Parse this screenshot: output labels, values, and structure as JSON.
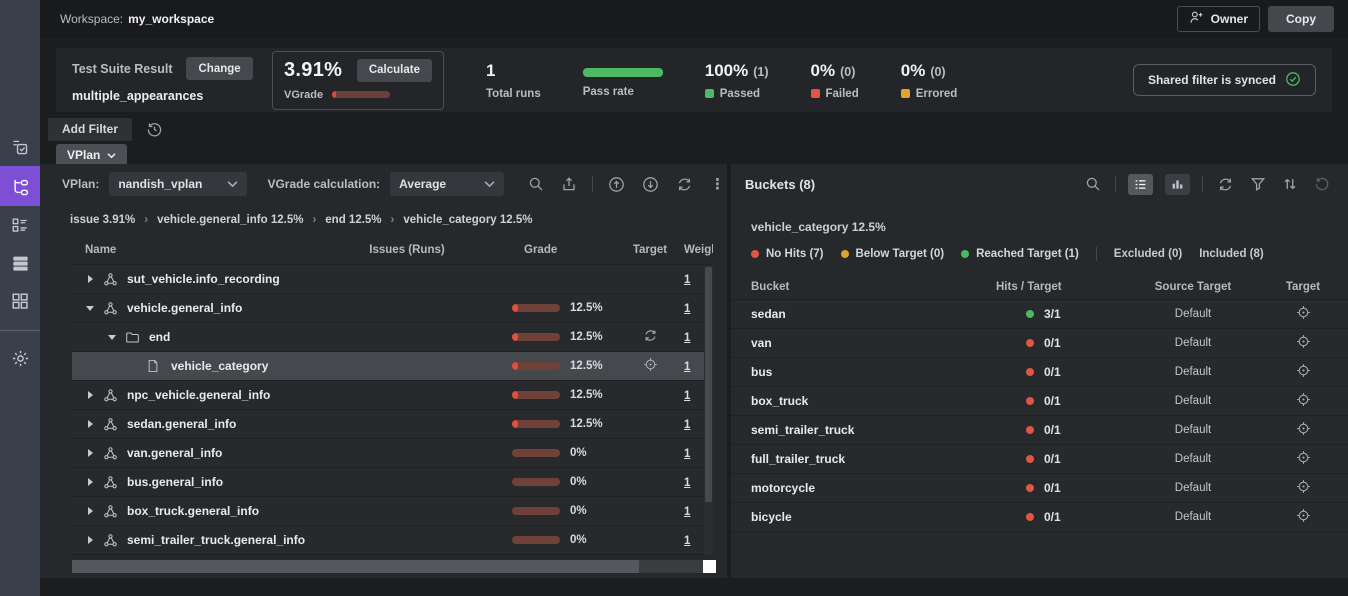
{
  "colors": {
    "accent_purple": "#7c4fd4",
    "green": "#4cb963",
    "red": "#e05543",
    "yellow": "#e0a42e",
    "grade_fill": "#e0503a",
    "grade_track": "#6f4138"
  },
  "topbar": {
    "workspace_label": "Workspace:",
    "workspace_name": "my_workspace",
    "owner_button": "Owner",
    "copy_button": "Copy"
  },
  "sidebar": {
    "items": [
      {
        "name": "test-suites-icon",
        "active": false
      },
      {
        "name": "vplan-tree-icon",
        "active": true
      },
      {
        "name": "checklist-icon",
        "active": false
      },
      {
        "name": "runs-stack-icon",
        "active": false
      },
      {
        "name": "dashboard-grid-icon",
        "active": false
      },
      {
        "name": "settings-gear-icon",
        "active": false
      }
    ]
  },
  "stats": {
    "test_suite_label": "Test Suite Result",
    "change_button": "Change",
    "suite_name": "multiple_appearances",
    "vgrade_value": "3.91%",
    "vgrade_percent": 3.91,
    "calculate_button": "Calculate",
    "vgrade_label": "VGrade",
    "total_runs_value": "1",
    "total_runs_label": "Total runs",
    "pass_rate_label": "Pass rate",
    "pass_rate_percent": 100,
    "passed_value": "100%",
    "passed_count": "(1)",
    "passed_label": "Passed",
    "failed_value": "0%",
    "failed_count": "(0)",
    "failed_label": "Failed",
    "errored_value": "0%",
    "errored_count": "(0)",
    "errored_label": "Errored",
    "shared_filter_label": "Shared filter is synced"
  },
  "filter_bar": {
    "add_filter_button": "Add Filter"
  },
  "tab": {
    "label": "VPlan"
  },
  "vplan_panel": {
    "vplan_label": "VPlan:",
    "vplan_value": "nandish_vplan",
    "calc_label": "VGrade calculation:",
    "calc_value": "Average",
    "breadcrumb": [
      "issue 3.91%",
      "vehicle.general_info 12.5%",
      "end 12.5%",
      "vehicle_category 12.5%"
    ],
    "columns": {
      "name": "Name",
      "issues": "Issues (Runs)",
      "grade": "Grade",
      "target": "Target",
      "weight": "Weight"
    },
    "rows": [
      {
        "name": "sut_vehicle.info_recording",
        "indent": 0,
        "icon": "hierarchy",
        "expander": "collapsed",
        "grade": null,
        "grade_pct": null,
        "target_icon": null,
        "weight": "1",
        "selected": false
      },
      {
        "name": "vehicle.general_info",
        "indent": 0,
        "icon": "hierarchy",
        "expander": "expanded",
        "grade": "12.5%",
        "grade_pct": 12.5,
        "target_icon": null,
        "weight": "1",
        "selected": false
      },
      {
        "name": "end",
        "indent": 1,
        "icon": "folder",
        "expander": "expanded",
        "grade": "12.5%",
        "grade_pct": 12.5,
        "target_icon": "sync",
        "weight": "1",
        "selected": false
      },
      {
        "name": "vehicle_category",
        "indent": 2,
        "icon": "file",
        "expander": null,
        "grade": "12.5%",
        "grade_pct": 12.5,
        "target_icon": "target",
        "weight": "1",
        "selected": true
      },
      {
        "name": "npc_vehicle.general_info",
        "indent": 0,
        "icon": "hierarchy",
        "expander": "collapsed",
        "grade": "12.5%",
        "grade_pct": 12.5,
        "target_icon": null,
        "weight": "1",
        "selected": false
      },
      {
        "name": "sedan.general_info",
        "indent": 0,
        "icon": "hierarchy",
        "expander": "collapsed",
        "grade": "12.5%",
        "grade_pct": 12.5,
        "target_icon": null,
        "weight": "1",
        "selected": false
      },
      {
        "name": "van.general_info",
        "indent": 0,
        "icon": "hierarchy",
        "expander": "collapsed",
        "grade": "0%",
        "grade_pct": 0,
        "target_icon": null,
        "weight": "1",
        "selected": false
      },
      {
        "name": "bus.general_info",
        "indent": 0,
        "icon": "hierarchy",
        "expander": "collapsed",
        "grade": "0%",
        "grade_pct": 0,
        "target_icon": null,
        "weight": "1",
        "selected": false
      },
      {
        "name": "box_truck.general_info",
        "indent": 0,
        "icon": "hierarchy",
        "expander": "collapsed",
        "grade": "0%",
        "grade_pct": 0,
        "target_icon": null,
        "weight": "1",
        "selected": false
      },
      {
        "name": "semi_trailer_truck.general_info",
        "indent": 0,
        "icon": "hierarchy",
        "expander": "collapsed",
        "grade": "0%",
        "grade_pct": 0,
        "target_icon": null,
        "weight": "1",
        "selected": false
      }
    ]
  },
  "buckets_panel": {
    "title": "Buckets (8)",
    "subtitle": "vehicle_category 12.5%",
    "legend": [
      {
        "label": "No Hits (7)",
        "color": "#e05543"
      },
      {
        "label": "Below Target (0)",
        "color": "#e0a42e"
      },
      {
        "label": "Reached Target (1)",
        "color": "#4cb963"
      }
    ],
    "filters": [
      {
        "label": "Excluded (0)"
      },
      {
        "label": "Included (8)"
      }
    ],
    "columns": {
      "bucket": "Bucket",
      "hits": "Hits / Target",
      "source": "Source Target",
      "target": "Target"
    },
    "rows": [
      {
        "bucket": "sedan",
        "hits": "3/1",
        "status": "reached",
        "source": "Default"
      },
      {
        "bucket": "van",
        "hits": "0/1",
        "status": "no-hits",
        "source": "Default"
      },
      {
        "bucket": "bus",
        "hits": "0/1",
        "status": "no-hits",
        "source": "Default"
      },
      {
        "bucket": "box_truck",
        "hits": "0/1",
        "status": "no-hits",
        "source": "Default"
      },
      {
        "bucket": "semi_trailer_truck",
        "hits": "0/1",
        "status": "no-hits",
        "source": "Default"
      },
      {
        "bucket": "full_trailer_truck",
        "hits": "0/1",
        "status": "no-hits",
        "source": "Default"
      },
      {
        "bucket": "motorcycle",
        "hits": "0/1",
        "status": "no-hits",
        "source": "Default"
      },
      {
        "bucket": "bicycle",
        "hits": "0/1",
        "status": "no-hits",
        "source": "Default"
      }
    ]
  }
}
